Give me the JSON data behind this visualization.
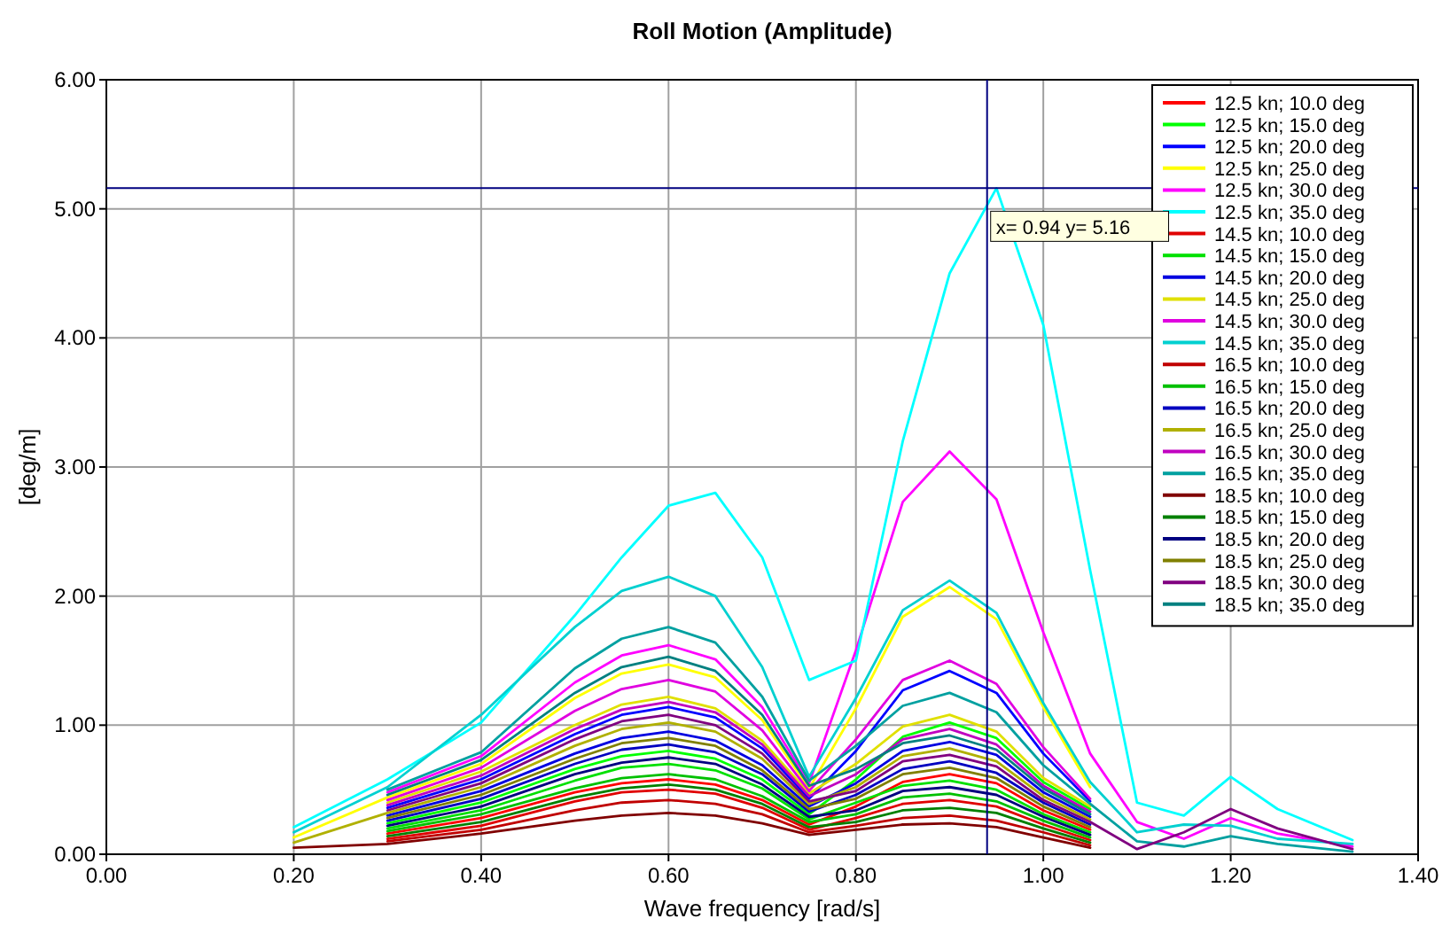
{
  "chart_data": {
    "type": "line",
    "title": "Roll Motion (Amplitude)",
    "xlabel": "Wave frequency [rad/s]",
    "ylabel": "[deg/m]",
    "xlim": [
      0,
      1.4
    ],
    "ylim": [
      0,
      6
    ],
    "xticks": [
      {
        "value": 0,
        "label": "0.00"
      },
      {
        "value": 0.2,
        "label": "0.20"
      },
      {
        "value": 0.4,
        "label": "0.40"
      },
      {
        "value": 0.6,
        "label": "0.60"
      },
      {
        "value": 0.8,
        "label": "0.80"
      },
      {
        "value": 1,
        "label": "1.00"
      },
      {
        "value": 1.2,
        "label": "1.20"
      },
      {
        "value": 1.4,
        "label": "1.40"
      }
    ],
    "yticks": [
      {
        "value": 0,
        "label": "0.00"
      },
      {
        "value": 1,
        "label": "1.00"
      },
      {
        "value": 2,
        "label": "2.00"
      },
      {
        "value": 3,
        "label": "3.00"
      },
      {
        "value": 4,
        "label": "4.00"
      },
      {
        "value": 5,
        "label": "5.00"
      },
      {
        "value": 6,
        "label": "6.00"
      }
    ],
    "grid": true,
    "legend": "top right",
    "marker": "none",
    "line_style": "solid",
    "ref_lines": [
      {
        "axis": "x",
        "value": 0.94,
        "color": "#000080"
      },
      {
        "axis": "y",
        "value": 5.16,
        "color": "#000080"
      }
    ],
    "annotations": [
      {
        "text": "x= 0.94  y= 5.16",
        "x": 0.94,
        "y": 5.16
      }
    ],
    "x": [
      0.2,
      0.3,
      0.4,
      0.5,
      0.55,
      0.6,
      0.65,
      0.7,
      0.75,
      0.8,
      0.85,
      0.9,
      0.95,
      1.0,
      1.05,
      1.1,
      1.15,
      1.2,
      1.25,
      1.33
    ],
    "series": [
      {
        "name": "12.5 kn; 10.0 deg",
        "color": "#ff0000",
        "values": [
          null,
          0.16,
          0.28,
          0.48,
          0.55,
          0.58,
          0.54,
          0.42,
          0.23,
          0.37,
          0.56,
          0.62,
          0.55,
          0.34,
          0.19,
          null,
          null,
          null,
          null,
          null
        ]
      },
      {
        "name": "12.5 kn; 15.0 deg",
        "color": "#00ff00",
        "values": [
          null,
          0.24,
          0.4,
          0.66,
          0.76,
          0.8,
          0.74,
          0.58,
          0.31,
          0.58,
          0.91,
          1.02,
          0.9,
          0.56,
          0.35,
          null,
          null,
          null,
          null,
          null
        ]
      },
      {
        "name": "12.5 kn; 20.0 deg",
        "color": "#0000ff",
        "values": [
          null,
          0.36,
          0.58,
          0.93,
          1.08,
          1.14,
          1.06,
          0.82,
          0.43,
          0.8,
          1.27,
          1.42,
          1.25,
          0.78,
          0.41,
          null,
          null,
          null,
          null,
          null
        ]
      },
      {
        "name": "12.5 kn; 25.0 deg",
        "color": "#ffff00",
        "values": [
          0.13,
          0.44,
          0.7,
          1.21,
          1.4,
          1.47,
          1.37,
          1.04,
          0.51,
          1.13,
          1.84,
          2.07,
          1.82,
          1.14,
          0.52,
          null,
          null,
          null,
          null,
          null
        ]
      },
      {
        "name": "12.5 kn; 30.0 deg",
        "color": "#ff00ff",
        "values": [
          null,
          0.48,
          0.76,
          1.33,
          1.54,
          1.62,
          1.51,
          1.14,
          0.55,
          1.58,
          2.73,
          3.12,
          2.75,
          1.72,
          0.78,
          0.25,
          0.12,
          0.28,
          0.16,
          0.06
        ]
      },
      {
        "name": "12.5 kn; 35.0 deg",
        "color": "#00ffff",
        "values": [
          0.21,
          0.58,
          1.02,
          1.85,
          2.3,
          2.7,
          2.8,
          2.3,
          1.35,
          1.5,
          3.2,
          4.5,
          5.16,
          4.1,
          2.2,
          0.4,
          0.3,
          0.6,
          0.35,
          0.11
        ]
      },
      {
        "name": "14.5 kn; 10.0 deg",
        "color": "#e00000",
        "values": [
          null,
          0.12,
          0.22,
          0.41,
          0.48,
          0.5,
          0.47,
          0.36,
          0.19,
          0.28,
          0.39,
          0.42,
          0.37,
          0.23,
          0.11,
          null,
          null,
          null,
          null,
          null
        ]
      },
      {
        "name": "14.5 kn; 15.0 deg",
        "color": "#00e000",
        "values": [
          null,
          0.2,
          0.34,
          0.57,
          0.67,
          0.7,
          0.65,
          0.51,
          0.27,
          0.4,
          0.53,
          0.57,
          0.5,
          0.31,
          0.17,
          null,
          null,
          null,
          null,
          null
        ]
      },
      {
        "name": "14.5 kn; 20.0 deg",
        "color": "#0000e0",
        "values": [
          null,
          0.3,
          0.49,
          0.78,
          0.9,
          0.95,
          0.88,
          0.69,
          0.37,
          0.55,
          0.8,
          0.87,
          0.77,
          0.48,
          0.29,
          null,
          null,
          null,
          null,
          null
        ]
      },
      {
        "name": "14.5 kn; 25.0 deg",
        "color": "#e0e000",
        "values": [
          null,
          0.4,
          0.64,
          1.0,
          1.16,
          1.22,
          1.13,
          0.88,
          0.47,
          0.7,
          0.99,
          1.08,
          0.95,
          0.59,
          0.37,
          null,
          null,
          null,
          null,
          null
        ]
      },
      {
        "name": "14.5 kn; 30.0 deg",
        "color": "#e000e0",
        "values": [
          null,
          0.42,
          0.67,
          1.11,
          1.28,
          1.35,
          1.26,
          0.96,
          0.49,
          0.89,
          1.35,
          1.5,
          1.32,
          0.83,
          0.43,
          null,
          null,
          null,
          null,
          null
        ]
      },
      {
        "name": "14.5 kn; 35.0 deg",
        "color": "#00d0d0",
        "values": [
          0.17,
          0.52,
          1.08,
          1.76,
          2.04,
          2.15,
          2.0,
          1.45,
          0.6,
          1.21,
          1.89,
          2.12,
          1.87,
          1.17,
          0.56,
          0.17,
          0.23,
          0.22,
          0.12,
          0.08
        ]
      },
      {
        "name": "16.5 kn; 10.0 deg",
        "color": "#c00000",
        "values": [
          null,
          0.1,
          0.19,
          0.34,
          0.4,
          0.42,
          0.39,
          0.31,
          0.17,
          0.22,
          0.28,
          0.3,
          0.26,
          0.17,
          0.07,
          null,
          null,
          null,
          null,
          null
        ]
      },
      {
        "name": "16.5 kn; 15.0 deg",
        "color": "#00c000",
        "values": [
          null,
          0.18,
          0.31,
          0.51,
          0.59,
          0.62,
          0.58,
          0.45,
          0.25,
          0.31,
          0.44,
          0.47,
          0.41,
          0.26,
          0.13,
          null,
          null,
          null,
          null,
          null
        ]
      },
      {
        "name": "16.5 kn; 20.0 deg",
        "color": "#0000c0",
        "values": [
          null,
          0.26,
          0.43,
          0.7,
          0.81,
          0.85,
          0.79,
          0.62,
          0.33,
          0.46,
          0.66,
          0.72,
          0.63,
          0.4,
          0.23,
          null,
          null,
          null,
          null,
          null
        ]
      },
      {
        "name": "16.5 kn; 25.0 deg",
        "color": "#b0b000",
        "values": [
          0.09,
          0.32,
          0.52,
          0.84,
          0.97,
          1.02,
          0.95,
          0.74,
          0.39,
          0.52,
          0.76,
          0.82,
          0.72,
          0.45,
          0.27,
          null,
          null,
          null,
          null,
          null
        ]
      },
      {
        "name": "16.5 kn; 30.0 deg",
        "color": "#c000c0",
        "values": [
          null,
          0.38,
          0.61,
          0.97,
          1.12,
          1.18,
          1.1,
          0.85,
          0.45,
          0.62,
          0.89,
          0.97,
          0.85,
          0.53,
          0.33,
          null,
          null,
          null,
          null,
          null
        ]
      },
      {
        "name": "16.5 kn; 35.0 deg",
        "color": "#00a0a0",
        "values": [
          null,
          0.5,
          0.79,
          1.44,
          1.67,
          1.76,
          1.64,
          1.22,
          0.57,
          0.84,
          1.15,
          1.25,
          1.1,
          0.69,
          0.39,
          0.1,
          0.06,
          0.14,
          0.08,
          0.02
        ]
      },
      {
        "name": "18.5 kn; 10.0 deg",
        "color": "#800000",
        "values": [
          0.05,
          0.08,
          0.16,
          0.26,
          0.3,
          0.32,
          0.3,
          0.24,
          0.15,
          0.19,
          0.23,
          0.24,
          0.21,
          0.13,
          0.05,
          null,
          null,
          null,
          null,
          null
        ]
      },
      {
        "name": "18.5 kn; 15.0 deg",
        "color": "#008000",
        "values": [
          null,
          0.14,
          0.25,
          0.44,
          0.51,
          0.54,
          0.5,
          0.39,
          0.21,
          0.25,
          0.34,
          0.36,
          0.32,
          0.2,
          0.09,
          null,
          null,
          null,
          null,
          null
        ]
      },
      {
        "name": "18.5 kn; 20.0 deg",
        "color": "#000080",
        "values": [
          null,
          0.22,
          0.37,
          0.62,
          0.71,
          0.75,
          0.7,
          0.54,
          0.29,
          0.34,
          0.49,
          0.52,
          0.46,
          0.29,
          0.15,
          null,
          null,
          null,
          null,
          null
        ]
      },
      {
        "name": "18.5 kn; 25.0 deg",
        "color": "#808000",
        "values": [
          null,
          0.28,
          0.46,
          0.74,
          0.86,
          0.9,
          0.84,
          0.65,
          0.35,
          0.43,
          0.62,
          0.67,
          0.59,
          0.37,
          0.21,
          null,
          null,
          null,
          null,
          null
        ]
      },
      {
        "name": "18.5 kn; 30.0 deg",
        "color": "#800080",
        "values": [
          null,
          0.34,
          0.55,
          0.89,
          1.03,
          1.08,
          1.0,
          0.78,
          0.41,
          0.49,
          0.72,
          0.77,
          0.68,
          0.42,
          0.25,
          0.04,
          0.17,
          0.35,
          0.2,
          0.04
        ]
      },
      {
        "name": "18.5 kn; 35.0 deg",
        "color": "#008080",
        "values": [
          null,
          0.46,
          0.73,
          1.25,
          1.45,
          1.53,
          1.42,
          1.08,
          0.53,
          0.66,
          0.86,
          0.92,
          0.81,
          0.51,
          0.31,
          null,
          null,
          null,
          null,
          null
        ]
      }
    ]
  }
}
